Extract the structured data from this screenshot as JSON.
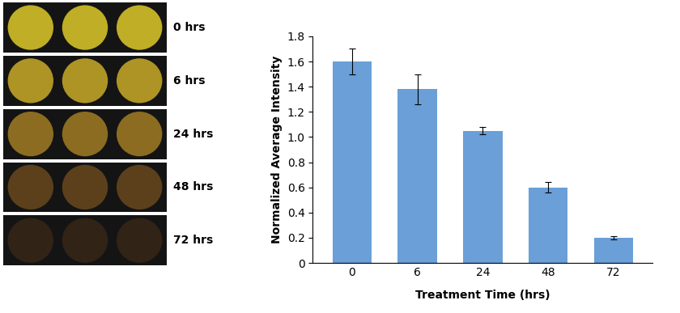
{
  "chart_data": {
    "type": "bar",
    "categories": [
      "0",
      "6",
      "24",
      "48",
      "72"
    ],
    "values": [
      1.6,
      1.38,
      1.05,
      0.6,
      0.2
    ],
    "errors": [
      0.1,
      0.12,
      0.03,
      0.04,
      0.01
    ],
    "color": "#6a9fd8",
    "x_label": "Treatment Time (hrs)",
    "y_label": "Normalized Average Intensity",
    "ylim": [
      0,
      1.8
    ],
    "yticks": [
      0,
      0.2,
      0.4,
      0.6,
      0.8,
      1.0,
      1.2,
      1.4,
      1.6,
      1.8
    ],
    "grid": false
  },
  "spot_panel": {
    "labels": [
      "0 hrs",
      "6 hrs",
      "24 hrs",
      "48 hrs",
      "72 hrs"
    ],
    "spots_per_row": 3
  }
}
